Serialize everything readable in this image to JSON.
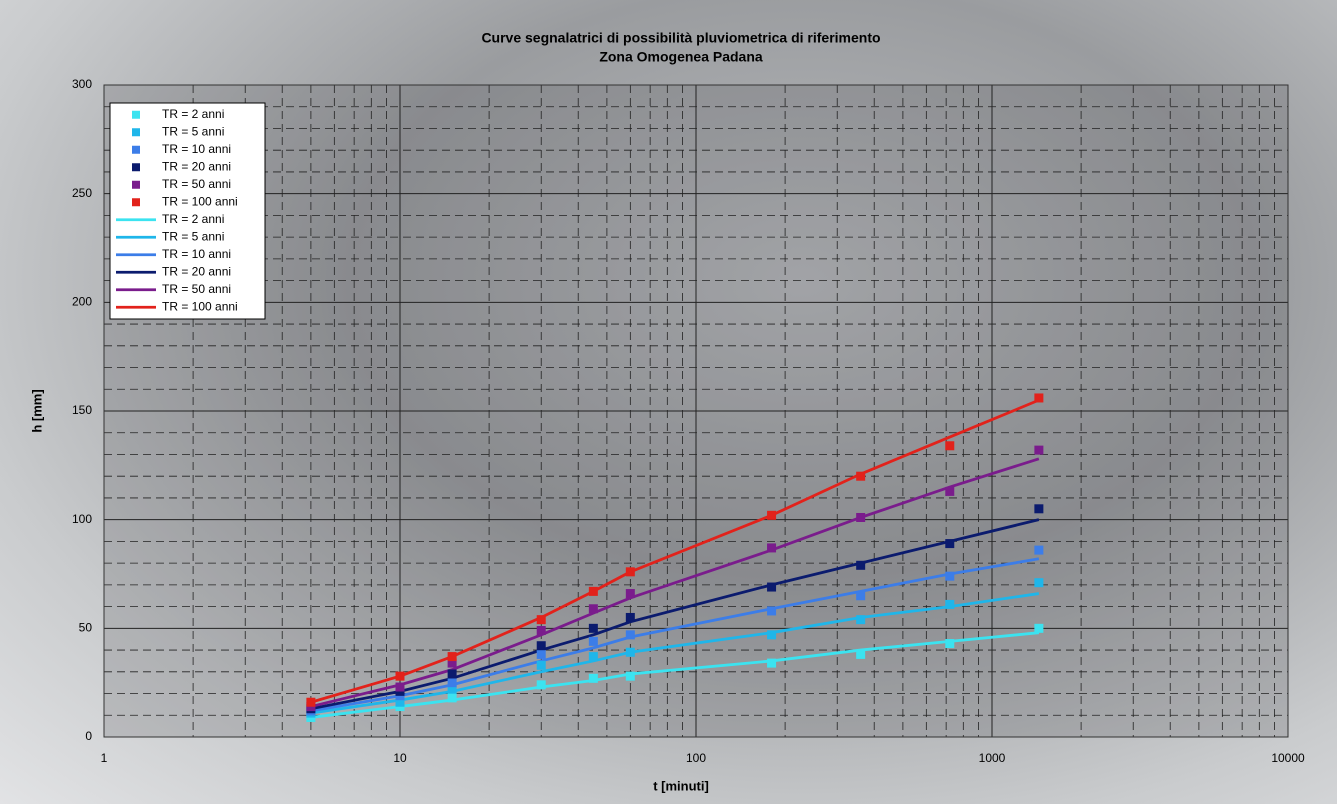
{
  "chart_data": {
    "type": "scatter",
    "title": "Curve segnalatrici di possibilità pluviometrica di riferimento",
    "subtitle": "Zona Omogenea Padana",
    "x_label": "t [minuti]",
    "y_label": "h [mm]",
    "x": [
      5,
      10,
      15,
      30,
      45,
      60,
      180,
      360,
      720,
      1440
    ],
    "xlim": [
      1,
      10000
    ],
    "xticks": [
      1,
      10,
      100,
      1000,
      10000
    ],
    "xscale": "log",
    "ylim": [
      0,
      300
    ],
    "yticks": [
      0,
      50,
      100,
      150,
      200,
      250,
      300
    ],
    "grid": true,
    "minor_grid": true,
    "legend": "upper left",
    "series": [
      {
        "name": "TR = 2 anni",
        "mode": "markers",
        "color": "#3be3f0",
        "values": [
          9,
          14,
          18,
          24,
          27,
          28,
          34,
          38,
          43,
          50
        ]
      },
      {
        "name": "TR = 5 anni",
        "mode": "markers",
        "color": "#1fb6ea",
        "values": [
          11,
          16,
          22,
          33,
          37,
          39,
          47,
          54,
          61,
          71
        ]
      },
      {
        "name": "TR = 10 anni",
        "mode": "markers",
        "color": "#3c7de8",
        "values": [
          12,
          19,
          25,
          38,
          44,
          47,
          58,
          65,
          74,
          86
        ]
      },
      {
        "name": "TR = 20 anni",
        "mode": "markers",
        "color": "#0b1b6e",
        "values": [
          13,
          21,
          29,
          42,
          50,
          55,
          69,
          79,
          89,
          105
        ]
      },
      {
        "name": "TR = 50 anni",
        "mode": "markers",
        "color": "#7a1c8c",
        "values": [
          14,
          23,
          34,
          49,
          59,
          66,
          87,
          101,
          113,
          132
        ]
      },
      {
        "name": "TR = 100 anni",
        "mode": "markers",
        "color": "#e2221b",
        "values": [
          16,
          28,
          37,
          54,
          67,
          76,
          102,
          120,
          134,
          156
        ]
      },
      {
        "name": "TR = 2 anni",
        "mode": "line",
        "color": "#3be3f0",
        "values": [
          9,
          14,
          17,
          23,
          26,
          29,
          35,
          40,
          44,
          48
        ]
      },
      {
        "name": "TR = 5 anni",
        "mode": "line",
        "color": "#1fb6ea",
        "values": [
          11,
          17,
          21,
          30,
          35,
          39,
          48,
          55,
          60,
          66
        ]
      },
      {
        "name": "TR = 10 anni",
        "mode": "line",
        "color": "#3c7de8",
        "values": [
          12,
          19,
          24,
          35,
          41,
          46,
          59,
          67,
          75,
          82
        ]
      },
      {
        "name": "TR = 20 anni",
        "mode": "line",
        "color": "#0b1b6e",
        "values": [
          13,
          21,
          27,
          40,
          47,
          53,
          70,
          80,
          90,
          100
        ]
      },
      {
        "name": "TR = 50 anni",
        "mode": "line",
        "color": "#7a1c8c",
        "values": [
          14,
          24,
          31,
          47,
          57,
          64,
          86,
          101,
          115,
          128
        ]
      },
      {
        "name": "TR = 100 anni",
        "mode": "line",
        "color": "#e2221b",
        "values": [
          16,
          28,
          37,
          55,
          67,
          76,
          102,
          121,
          138,
          155
        ]
      }
    ]
  }
}
